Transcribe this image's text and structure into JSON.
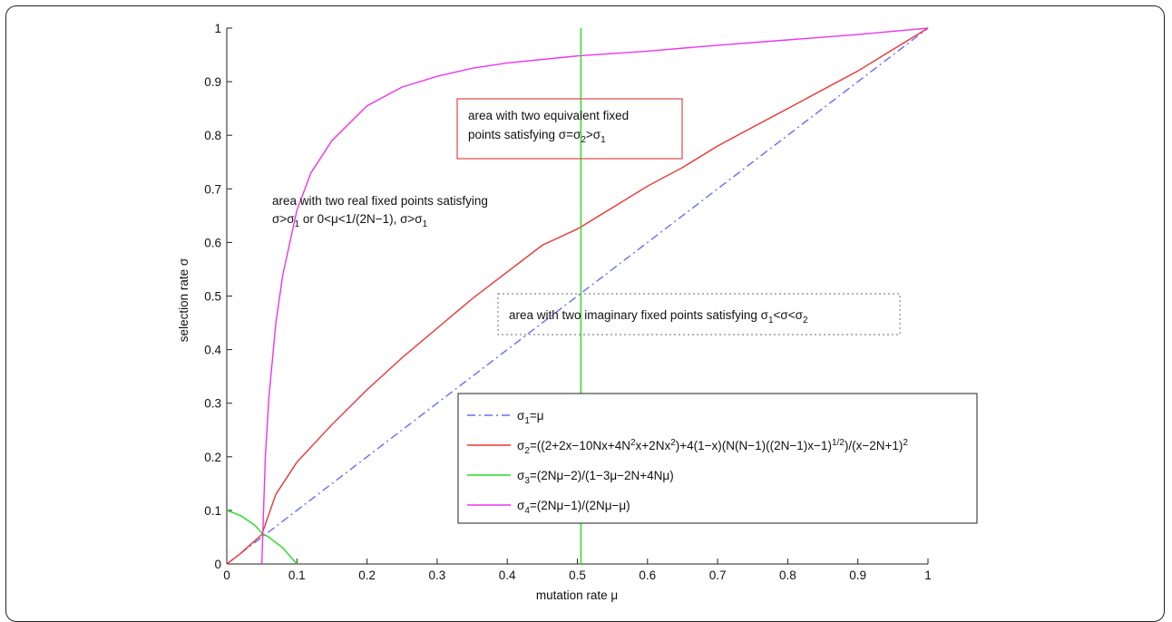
{
  "chart_data": {
    "type": "line",
    "xlabel": "mutation rate μ",
    "ylabel": "selection rate σ",
    "xlim": [
      0,
      1
    ],
    "ylim": [
      0,
      1
    ],
    "xticks": [
      "0",
      "0.1",
      "0.2",
      "0.3",
      "0.4",
      "0.5",
      "0.6",
      "0.7",
      "0.8",
      "0.9",
      "1"
    ],
    "yticks": [
      "0",
      "0.1",
      "0.2",
      "0.3",
      "0.4",
      "0.5",
      "0.6",
      "0.7",
      "0.8",
      "0.9",
      "1"
    ],
    "grid": false,
    "legend_position": "bottom-right",
    "series": [
      {
        "id": "s1",
        "color": "#6a6aff",
        "style": "dashdot",
        "legend": {
          "base": "σ",
          "sub": "1",
          "rest": "=μ"
        },
        "x": [
          0,
          1
        ],
        "y": [
          0,
          1
        ]
      },
      {
        "id": "s2",
        "color": "#ee3333",
        "style": "solid",
        "legend": {
          "base": "σ",
          "sub": "2",
          "rest": "=((2+2x−10Nx+4N",
          "sup1": "2",
          "rest2": "x+2Nx",
          "sup2": "2",
          "rest3": ")+4(1−x)(N(N−1)((2N−1)x−1)",
          "sup3": "1/2",
          "rest4": ")/(x−2N+1)",
          "sup4": "2"
        },
        "x": [
          0,
          0.02,
          0.05,
          0.07,
          0.1,
          0.15,
          0.2,
          0.25,
          0.3,
          0.35,
          0.4,
          0.45,
          0.5,
          0.55,
          0.6,
          0.65,
          0.7,
          0.75,
          0.8,
          0.85,
          0.9,
          0.95,
          1.0
        ],
        "y": [
          0,
          0.02,
          0.055,
          0.13,
          0.19,
          0.26,
          0.325,
          0.385,
          0.44,
          0.495,
          0.545,
          0.595,
          0.625,
          0.665,
          0.705,
          0.74,
          0.78,
          0.815,
          0.85,
          0.885,
          0.92,
          0.96,
          1.0
        ]
      },
      {
        "id": "s3",
        "color": "#22dd22",
        "style": "solid",
        "legend": {
          "base": "σ",
          "sub": "3",
          "rest": "=(2Nμ−2)/(1−3μ−2N+4Nμ)"
        },
        "x": [
          0,
          0.02,
          0.04,
          0.05,
          0.06,
          0.08,
          0.1
        ],
        "y": [
          0.1,
          0.09,
          0.072,
          0.058,
          0.05,
          0.03,
          0
        ]
      },
      {
        "id": "s4",
        "color": "#ee33ee",
        "style": "solid",
        "legend": {
          "base": "σ",
          "sub": "4",
          "rest": "=(2Nμ−1)/(2Nμ−μ)"
        },
        "x": [
          0.05,
          0.055,
          0.06,
          0.07,
          0.08,
          0.1,
          0.12,
          0.15,
          0.2,
          0.25,
          0.3,
          0.35,
          0.4,
          0.5,
          0.6,
          0.7,
          0.8,
          0.9,
          1.0
        ],
        "y": [
          0,
          0.2,
          0.31,
          0.45,
          0.54,
          0.66,
          0.73,
          0.79,
          0.855,
          0.89,
          0.91,
          0.925,
          0.935,
          0.948,
          0.957,
          0.968,
          0.978,
          0.988,
          1.0
        ]
      },
      {
        "id": "vline",
        "color": "#22dd22",
        "style": "solid",
        "x": [
          0.505,
          0.505
        ],
        "y": [
          0,
          1
        ]
      }
    ],
    "annotations": {
      "top": {
        "line1": "area with two equivalent fixed",
        "line2_pre": "points satisfying σ=σ",
        "line2_sub1": "2",
        "line2_mid": ">σ",
        "line2_sub2": "1"
      },
      "left": {
        "line1": "area with two real fixed points satisfying",
        "line2_a": "σ>σ",
        "line2_sub1": "1",
        "line2_b": " or  0<μ<1/(2N−1), σ>σ",
        "line2_sub2": "1"
      },
      "middle": {
        "pre": "area with two imaginary fixed points satisfying σ",
        "sub1": "1",
        "mid": "<σ<σ",
        "sub2": "2"
      }
    }
  }
}
